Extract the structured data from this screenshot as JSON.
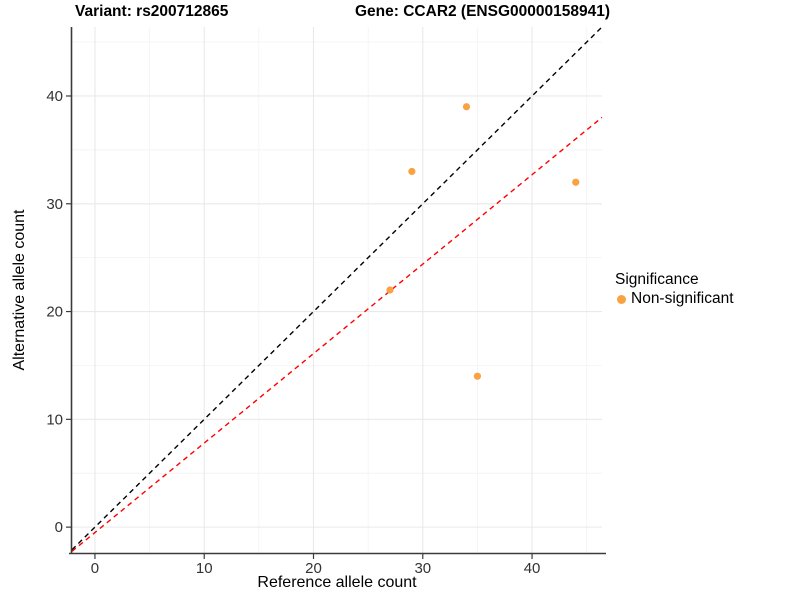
{
  "header": {
    "title_left": "Variant: rs200712865",
    "title_right": "Gene: CCAR2 (ENSG00000158941)"
  },
  "chart_data": {
    "type": "scatter",
    "title": "Variant: rs200712865 | Gene: CCAR2 (ENSG00000158941)",
    "xlabel": "Reference allele count",
    "ylabel": "Alternative allele count",
    "xlim": [
      -2.1,
      46.4
    ],
    "ylim": [
      -2.4,
      46.4
    ],
    "x_major_ticks": [
      0,
      10,
      20,
      30,
      40
    ],
    "x_minor_ticks": [
      5,
      15,
      25,
      35,
      45
    ],
    "y_major_ticks": [
      0,
      10,
      20,
      30,
      40
    ],
    "y_minor_ticks": [
      5,
      15,
      25,
      35,
      45
    ],
    "grid": "major+minor on white",
    "series": [
      {
        "name": "Non-significant",
        "type": "scatter",
        "color": "#F9A242",
        "xy": [
          [
            34,
            39
          ],
          [
            29,
            33
          ],
          [
            44,
            32
          ],
          [
            27,
            22
          ],
          [
            35,
            14
          ]
        ]
      }
    ],
    "lines": [
      {
        "name": "identity-line",
        "slope": 1,
        "intercept": 0,
        "color": "#000000",
        "dashed": true
      },
      {
        "name": "fit-line",
        "slope": 0.83,
        "intercept": -0.5,
        "color": "#FF0000",
        "dashed": true
      }
    ],
    "legend": {
      "title": "Significance",
      "position": "right",
      "items": [
        {
          "label": "Non-significant",
          "color": "#F9A242"
        }
      ]
    }
  },
  "colors": {
    "background": "#FFFFFF",
    "grid_major": "#E9E9E9",
    "grid_minor": "#F4F4F4",
    "axis_line": "#3B3B3B",
    "tick_text": "#333333",
    "point": "#F9A242",
    "identity_line": "#000000",
    "fit_line": "#FF0000"
  }
}
